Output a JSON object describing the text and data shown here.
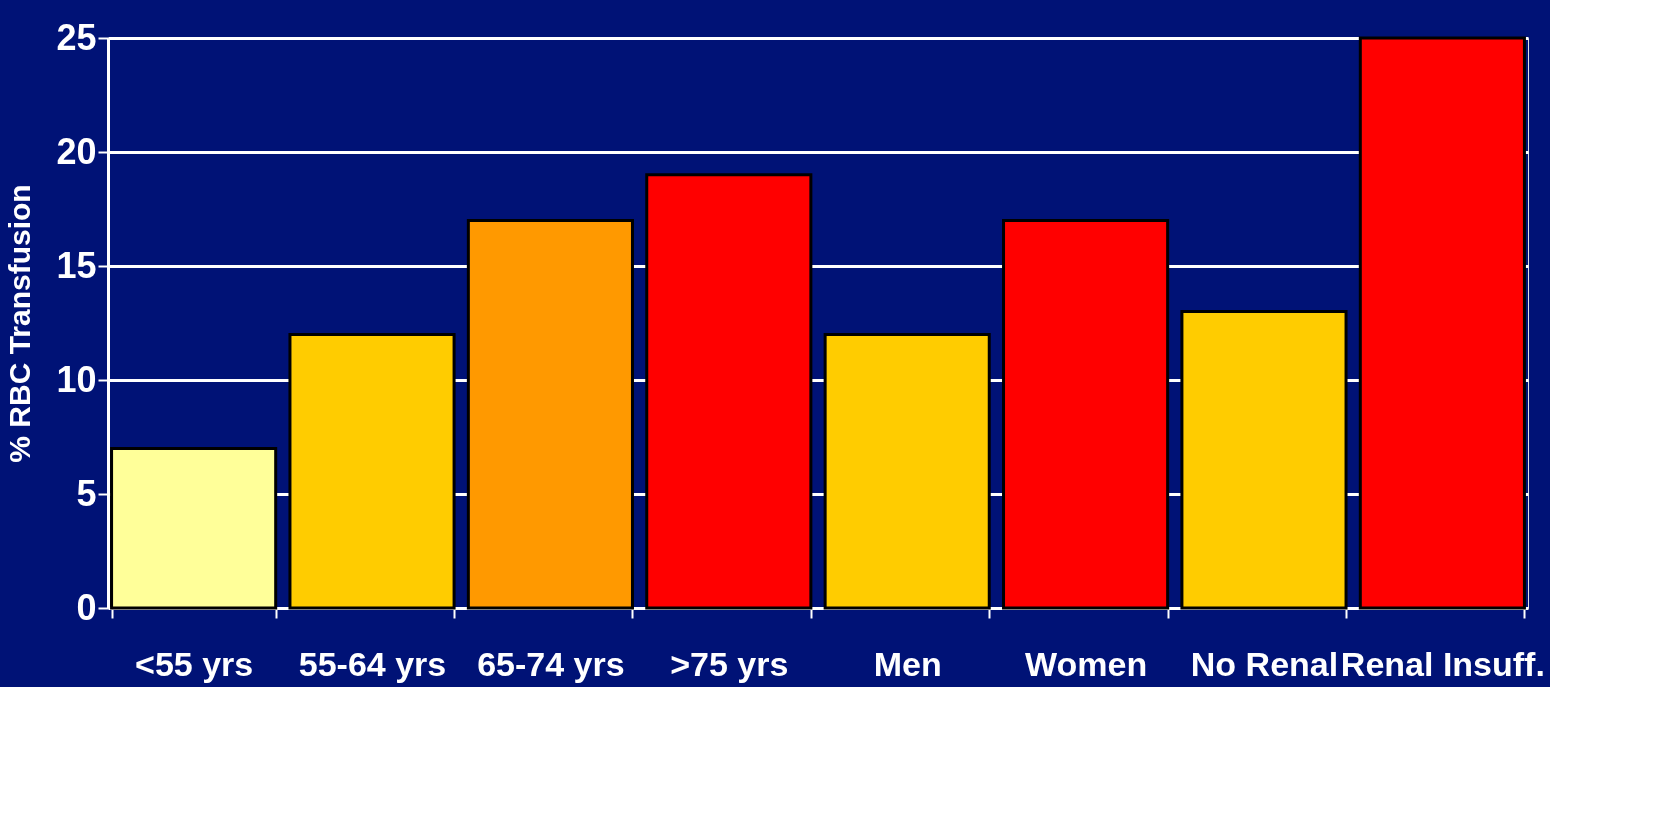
{
  "chart_data": {
    "type": "bar",
    "ylabel": "% RBC Transfusion",
    "categories": [
      "<55 yrs",
      "55-64 yrs",
      "65-74 yrs",
      ">75 yrs",
      "Men",
      "Women",
      "No Renal",
      "Renal Insuff."
    ],
    "values": [
      7,
      12,
      17,
      19,
      12,
      17,
      13,
      25
    ],
    "colors": [
      "#ffff99",
      "#ffcc00",
      "#ff9900",
      "#ff0000",
      "#ffcc00",
      "#ff0000",
      "#ffcc00",
      "#ff0000"
    ],
    "ylim": [
      0,
      25
    ],
    "yticks": [
      0,
      5,
      10,
      15,
      20,
      25
    ],
    "grid": "y"
  }
}
